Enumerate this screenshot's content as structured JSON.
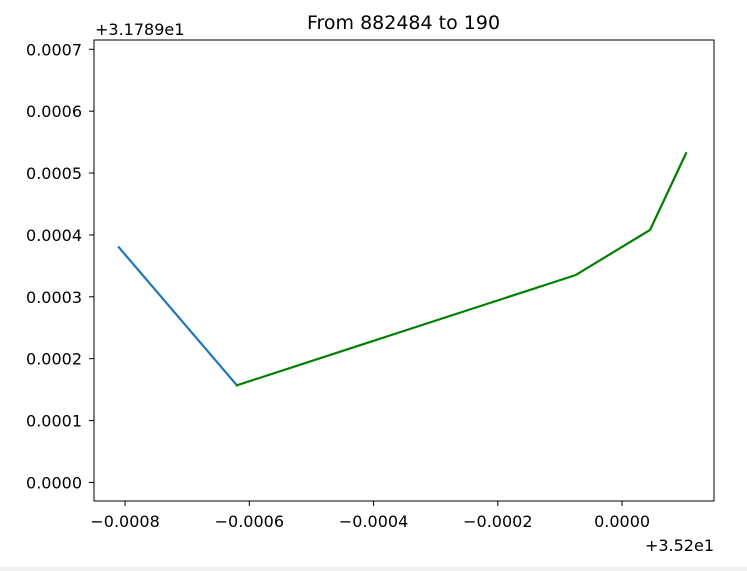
{
  "chart_data": {
    "type": "line",
    "title": "From 882484 to 190",
    "xlabel": "",
    "ylabel": "",
    "x_offset_label": "+3.52e1",
    "y_offset_label": "+3.1789e1",
    "xlim": [
      -0.00085,
      0.000148
    ],
    "ylim": [
      -3e-05,
      0.000715
    ],
    "x_ticks": [
      -0.0008,
      -0.0006,
      -0.0004,
      -0.0002,
      0.0
    ],
    "x_tick_labels": [
      "−0.0008",
      "−0.0006",
      "−0.0004",
      "−0.0002",
      "0.0000"
    ],
    "y_ticks": [
      0.0,
      0.0001,
      0.0002,
      0.0003,
      0.0004,
      0.0005,
      0.0006,
      0.0007
    ],
    "y_tick_labels": [
      "0.0000",
      "0.0001",
      "0.0002",
      "0.0003",
      "0.0004",
      "0.0005",
      "0.0006",
      "0.0007"
    ],
    "grid": false,
    "series": [
      {
        "color": "#1f77b4",
        "x": [
          -0.00081,
          -0.00062
        ],
        "y": [
          0.00038,
          0.000157
        ]
      },
      {
        "color": "#008000",
        "x": [
          -0.00062,
          -7.5e-05,
          4.5e-05,
          0.000103
        ],
        "y": [
          0.000157,
          0.000335,
          0.000408,
          0.000532
        ]
      }
    ]
  }
}
